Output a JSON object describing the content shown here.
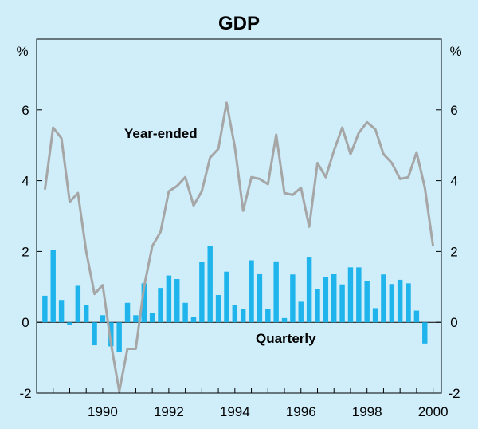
{
  "chart_data": {
    "type": "bar+line",
    "title": "GDP",
    "left_unit": "%",
    "right_unit": "%",
    "ylim": [
      -2,
      8
    ],
    "y_ticks": [
      -2,
      0,
      2,
      4,
      6
    ],
    "y_tick_labels": [
      "-2",
      "0",
      "2",
      "4",
      "6"
    ],
    "x_tick_labels": [
      "1990",
      "1992",
      "1994",
      "1996",
      "1998",
      "2000"
    ],
    "x_tick_years": [
      1990,
      1992,
      1994,
      1996,
      1998,
      2000
    ],
    "x_start": 1988.5,
    "x_end": 2000.75,
    "series": [
      {
        "name": "Quarterly",
        "type": "bar",
        "color": "#1fb4ec",
        "label": "Quarterly",
        "x": [
          1988.75,
          1989.0,
          1989.25,
          1989.5,
          1989.75,
          1990.0,
          1990.25,
          1990.5,
          1990.75,
          1991.0,
          1991.25,
          1991.5,
          1991.75,
          1992.0,
          1992.25,
          1992.5,
          1992.75,
          1993.0,
          1993.25,
          1993.5,
          1993.75,
          1994.0,
          1994.25,
          1994.5,
          1994.75,
          1995.0,
          1995.25,
          1995.5,
          1995.75,
          1996.0,
          1996.25,
          1996.5,
          1996.75,
          1997.0,
          1997.25,
          1997.5,
          1997.75,
          1998.0,
          1998.25,
          1998.5,
          1998.75,
          1999.0,
          1999.25,
          1999.5,
          1999.75,
          2000.0,
          2000.25,
          2000.5
        ],
        "values": [
          0.75,
          2.05,
          0.63,
          -0.08,
          1.03,
          0.5,
          -0.65,
          0.2,
          -0.68,
          -0.85,
          0.55,
          0.2,
          1.1,
          0.27,
          0.97,
          1.32,
          1.22,
          0.55,
          0.15,
          1.7,
          2.15,
          0.77,
          1.43,
          0.48,
          0.38,
          1.75,
          1.38,
          0.37,
          1.72,
          0.12,
          1.35,
          0.58,
          1.85,
          0.94,
          1.27,
          1.37,
          1.07,
          1.55,
          1.55,
          1.17,
          0.4,
          1.35,
          1.08,
          1.2,
          1.1,
          0.33,
          -0.6,
          0
        ]
      },
      {
        "name": "Year-ended",
        "type": "line",
        "color": "#a6a6a6",
        "label": "Year-ended",
        "x": [
          1988.75,
          1989.0,
          1989.25,
          1989.5,
          1989.75,
          1990.0,
          1990.25,
          1990.5,
          1990.75,
          1991.0,
          1991.25,
          1991.5,
          1991.75,
          1992.0,
          1992.25,
          1992.5,
          1992.75,
          1993.0,
          1993.25,
          1993.5,
          1993.75,
          1994.0,
          1994.25,
          1994.5,
          1994.75,
          1995.0,
          1995.25,
          1995.5,
          1995.75,
          1996.0,
          1996.25,
          1996.5,
          1996.75,
          1997.0,
          1997.25,
          1997.5,
          1997.75,
          1998.0,
          1998.25,
          1998.5,
          1998.75,
          1999.0,
          1999.25,
          1999.5,
          1999.75,
          2000.0,
          2000.25,
          2000.5
        ],
        "values": [
          3.75,
          5.5,
          5.2,
          3.4,
          3.65,
          2.0,
          0.8,
          1.05,
          -0.6,
          -1.95,
          -0.75,
          -0.75,
          1.0,
          2.15,
          2.55,
          3.7,
          3.85,
          4.1,
          3.3,
          3.7,
          4.65,
          4.9,
          6.2,
          4.95,
          3.15,
          4.1,
          4.05,
          3.9,
          5.3,
          3.65,
          3.6,
          3.8,
          2.7,
          4.5,
          4.1,
          4.85,
          5.5,
          4.75,
          5.35,
          5.65,
          5.45,
          4.75,
          4.5,
          4.05,
          4.1,
          4.8,
          3.8,
          2.15
        ]
      }
    ]
  }
}
